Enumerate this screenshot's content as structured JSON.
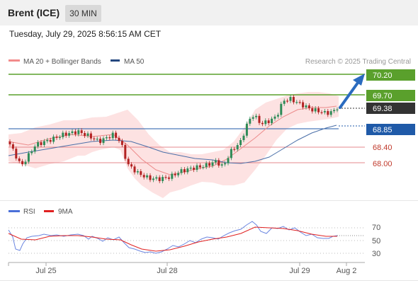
{
  "header": {
    "title": "Brent (ICE)",
    "interval": "30 MIN"
  },
  "timestamp": "Tuesday, July 29, 2025 8:56:15 AM CET",
  "legend": {
    "ma20": "MA 20 + Bollinger Bands",
    "ma50": "MA 50",
    "credit": "Research © 2025 Trading Central"
  },
  "colors": {
    "resistance": "#5aa02c",
    "current": "#333333",
    "pivot": "#1f5aa8",
    "support": "#e5888c",
    "band": "#fbd9d9",
    "candle_up": "#2e8b57",
    "candle_down": "#b22222",
    "ma20": "#e57373",
    "ma50": "#4a6fa8",
    "arrow": "#2a6bbf",
    "rsi": "#4a6fd8",
    "rsi_ma": "#e02020"
  },
  "levels": [
    {
      "value": "70.20",
      "kind": "resistance"
    },
    {
      "value": "69.70",
      "kind": "resistance"
    },
    {
      "value": "69.38",
      "kind": "current"
    },
    {
      "value": "68.85",
      "kind": "pivot"
    },
    {
      "value": "68.40",
      "kind": "support"
    },
    {
      "value": "68.00",
      "kind": "support"
    }
  ],
  "rsi": {
    "legend_rsi": "RSI",
    "legend_ma": "9MA",
    "levels": [
      "70",
      "50",
      "30"
    ]
  },
  "xaxis": {
    "labels": [
      "Jul 25",
      "Jul 28",
      "Jul 29",
      "Aug 2"
    ]
  }
}
